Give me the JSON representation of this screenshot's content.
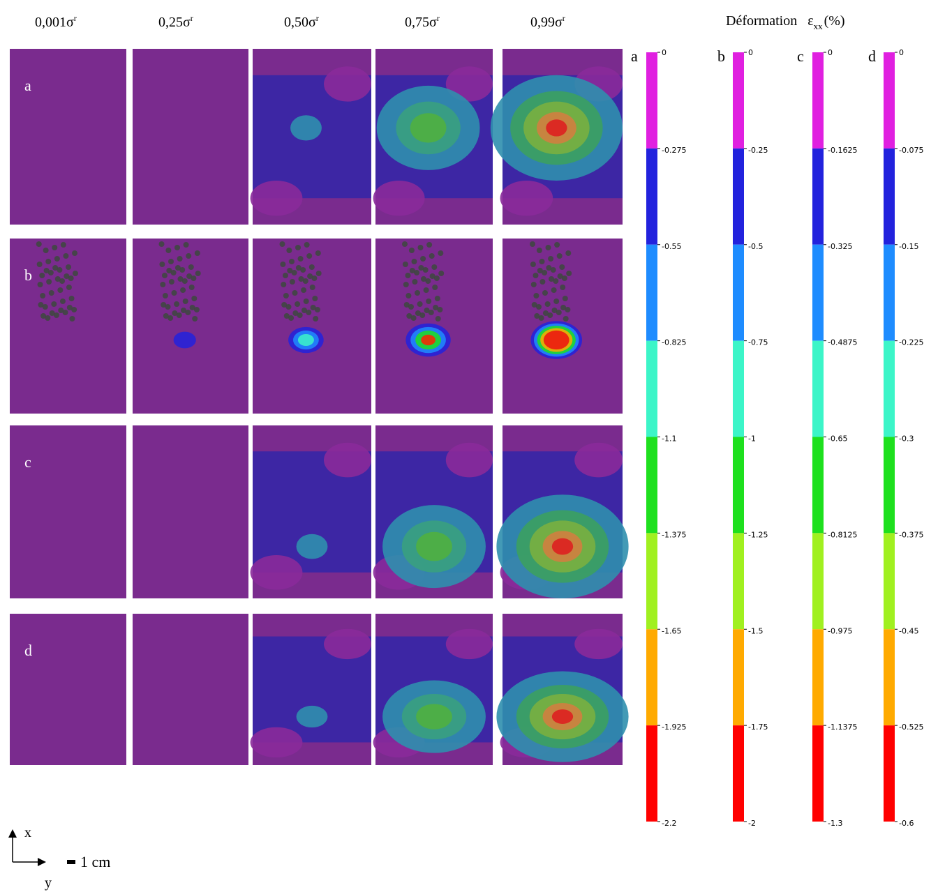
{
  "columns": [
    {
      "text": "0,001σ",
      "sup": "r"
    },
    {
      "text": "0,25σ",
      "sup": "r"
    },
    {
      "text": "0,50σ",
      "sup": "r"
    },
    {
      "text": "0,75σ",
      "sup": "r"
    },
    {
      "text": "0,99σ",
      "sup": "r"
    }
  ],
  "rows": [
    "a",
    "b",
    "c",
    "d"
  ],
  "legend": {
    "title": "Déformation",
    "symbol": "ε",
    "subscript": "xx",
    "unit": "(%)",
    "colors": [
      "#e020e0",
      "#2222dd",
      "#1e8cff",
      "#3cf5c8",
      "#1ee01e",
      "#a0f020",
      "#ffaa00",
      "#ff0000"
    ]
  },
  "colorbars": [
    {
      "label": "a",
      "ticks": [
        "0",
        "-0.275",
        "-0.55",
        "-0.825",
        "-1.1",
        "-1.375",
        "-1.65",
        "-1.925",
        "-2.2"
      ]
    },
    {
      "label": "b",
      "ticks": [
        "0",
        "-0.25",
        "-0.5",
        "-0.75",
        "-1",
        "-1.25",
        "-1.5",
        "-1.75",
        "-2"
      ]
    },
    {
      "label": "c",
      "ticks": [
        "0",
        "-0.1625",
        "-0.325",
        "-0.4875",
        "-0.65",
        "-0.8125",
        "-0.975",
        "-1.1375",
        "-1.3"
      ]
    },
    {
      "label": "d",
      "ticks": [
        "0",
        "-0.075",
        "-0.15",
        "-0.225",
        "-0.3",
        "-0.375",
        "-0.45",
        "-0.525",
        "-0.6"
      ]
    }
  ],
  "scale": {
    "x_axis": "x",
    "y_axis": "y",
    "bar": "1 cm"
  }
}
